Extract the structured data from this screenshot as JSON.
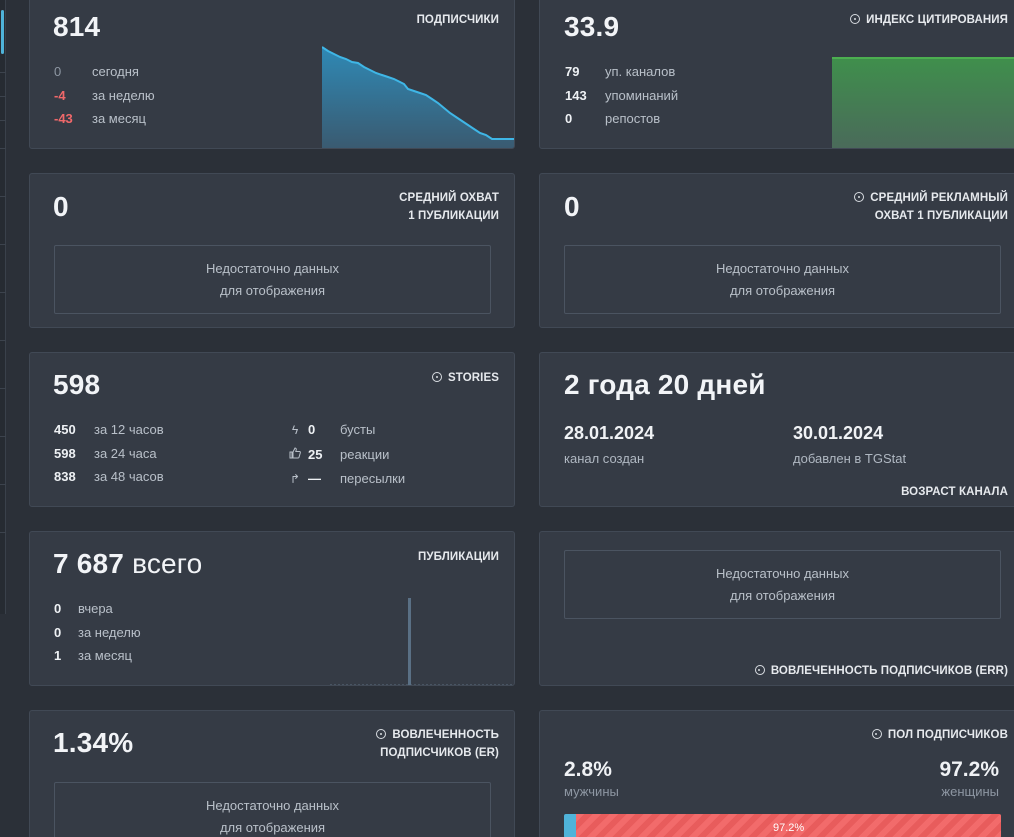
{
  "colors": {
    "background": "#2b3038",
    "card": "#353b45",
    "negative": "#f0686a",
    "accent_blue": "#4fb3d9",
    "chart_green": "#4caf50",
    "female_red": "#f26b6b"
  },
  "subscribers": {
    "title": "ПОДПИСЧИКИ",
    "value": "814",
    "rows": [
      {
        "value": "0",
        "label": "сегодня"
      },
      {
        "value": "-4",
        "label": "за неделю"
      },
      {
        "value": "-43",
        "label": "за месяц"
      }
    ]
  },
  "citation": {
    "title": "ИНДЕКС ЦИТИРОВАНИЯ",
    "value": "33.9",
    "rows": [
      {
        "value": "79",
        "label": "уп. каналов"
      },
      {
        "value": "143",
        "label": "упоминаний"
      },
      {
        "value": "0",
        "label": "репостов"
      }
    ]
  },
  "avg_reach": {
    "title_line1": "СРЕДНИЙ ОХВАТ",
    "title_line2": "1 ПУБЛИКАЦИИ",
    "value": "0",
    "nodata_line1": "Недостаточно данных",
    "nodata_line2": "для отображения"
  },
  "avg_ad_reach": {
    "title_line1": "СРЕДНИЙ РЕКЛАМНЫЙ",
    "title_line2": "ОХВАТ 1 ПУБЛИКАЦИИ",
    "value": "0",
    "nodata_line1": "Недостаточно данных",
    "nodata_line2": "для отображения"
  },
  "stories": {
    "title": "STORIES",
    "value": "598",
    "rows": [
      {
        "value": "450",
        "label": "за 12 часов"
      },
      {
        "value": "598",
        "label": "за 24 часа"
      },
      {
        "value": "838",
        "label": "за 48 часов"
      }
    ],
    "extra": [
      {
        "icon": "lightning-icon",
        "glyph": "ϟ",
        "value": "0",
        "label": "бусты"
      },
      {
        "icon": "thumbs-up-icon",
        "glyph": "👍",
        "value": "25",
        "label": "реакции"
      },
      {
        "icon": "forward-arrow-icon",
        "glyph": "↱",
        "value": "—",
        "label": "пересылки"
      }
    ]
  },
  "channel_age": {
    "title": "ВОЗРАСТ КАНАЛА",
    "value": "2 года 20 дней",
    "created_date": "28.01.2024",
    "created_label": "канал создан",
    "added_date": "30.01.2024",
    "added_label": "добавлен в TGStat"
  },
  "publications": {
    "title": "ПУБЛИКАЦИИ",
    "value": "7 687",
    "value_suffix": "всего",
    "rows": [
      {
        "value": "0",
        "label": "вчера"
      },
      {
        "value": "0",
        "label": "за неделю"
      },
      {
        "value": "1",
        "label": "за месяц"
      }
    ]
  },
  "err": {
    "title": "ВОВЛЕЧЕННОСТЬ ПОДПИСЧИКОВ (ERR)",
    "nodata_line1": "Недостаточно данных",
    "nodata_line2": "для отображения"
  },
  "er": {
    "title_line1": "ВОВЛЕЧЕННОСТЬ",
    "title_line2": "ПОДПИСЧИКОВ (ER)",
    "value": "1.34%",
    "nodata_line1": "Недостаточно данных",
    "nodata_line2": "для отображения"
  },
  "gender": {
    "title": "ПОЛ ПОДПИСЧИКОВ",
    "male_pct": "2.8%",
    "male_label": "мужчины",
    "female_pct": "97.2%",
    "female_label": "женщины",
    "bar_label": "97.2%",
    "male_fraction": 0.028
  }
}
